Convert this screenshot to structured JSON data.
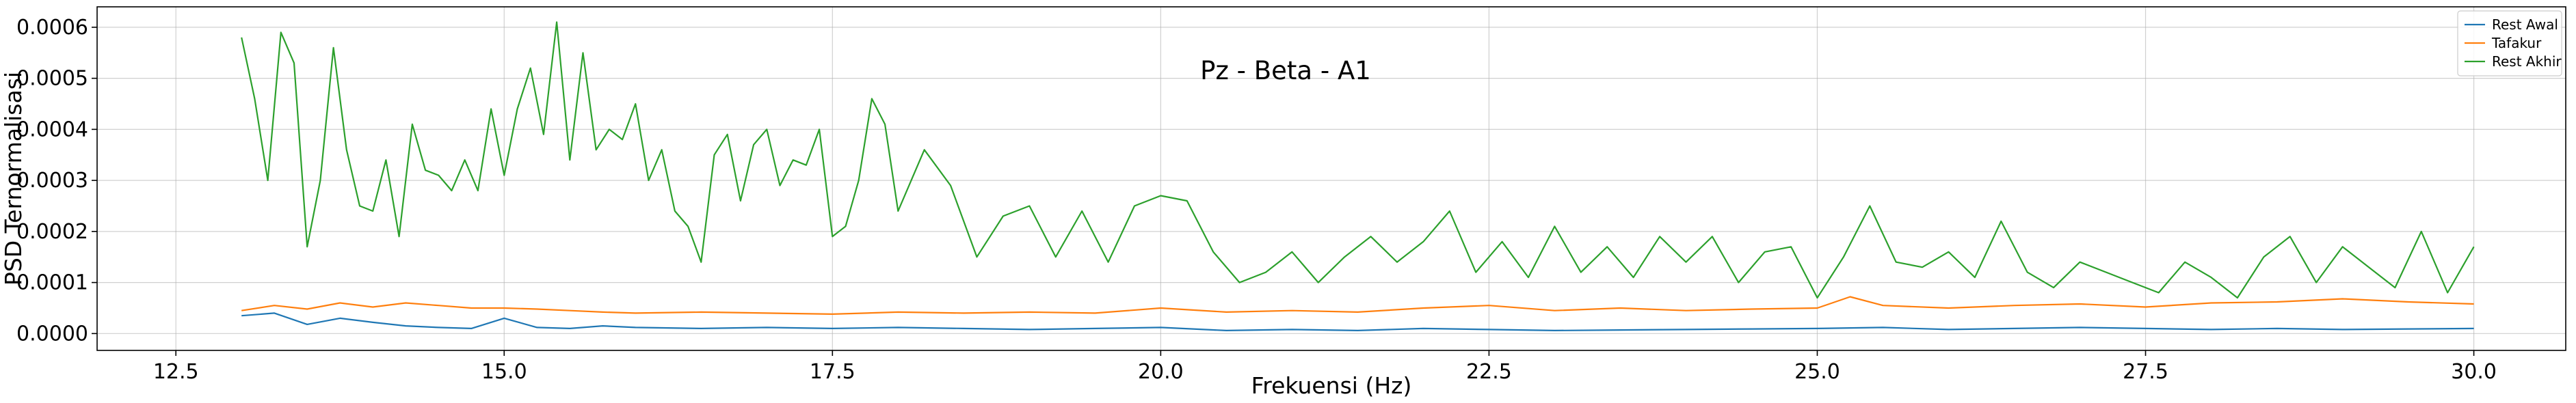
{
  "chart_data": {
    "type": "line",
    "title": "Pz - Beta - A1",
    "xlabel": "Frekuensi (Hz)",
    "ylabel": "PSD Ternormalisasi",
    "xlim": [
      11.9,
      30.7
    ],
    "ylim": [
      -3.3e-05,
      0.00064
    ],
    "x_ticks": [
      12.5,
      15.0,
      17.5,
      20.0,
      22.5,
      25.0,
      27.5,
      30.0
    ],
    "x_tick_labels": [
      "12.5",
      "15.0",
      "17.5",
      "20.0",
      "22.5",
      "25.0",
      "27.5",
      "30.0"
    ],
    "y_ticks": [
      0.0,
      0.0001,
      0.0002,
      0.0003,
      0.0004,
      0.0005,
      0.0006
    ],
    "y_tick_labels": [
      "0.0000",
      "0.0001",
      "0.0002",
      "0.0003",
      "0.0004",
      "0.0005",
      "0.0006"
    ],
    "grid": true,
    "legend_position": "top-right",
    "series": [
      {
        "name": "Rest Awal",
        "color": "#1f77b4",
        "x": [
          13.0,
          13.25,
          13.5,
          13.75,
          14.0,
          14.25,
          14.5,
          14.75,
          15.0,
          15.25,
          15.5,
          15.75,
          16.0,
          16.5,
          17.0,
          17.5,
          18.0,
          18.5,
          19.0,
          19.5,
          20.0,
          20.5,
          21.0,
          21.5,
          22.0,
          22.5,
          23.0,
          23.5,
          24.0,
          24.5,
          25.0,
          25.5,
          26.0,
          26.5,
          27.0,
          27.5,
          28.0,
          28.5,
          29.0,
          29.5,
          30.0
        ],
        "y": [
          3.5e-05,
          4e-05,
          1.8e-05,
          3e-05,
          2.2e-05,
          1.5e-05,
          1.2e-05,
          1e-05,
          3e-05,
          1.2e-05,
          1e-05,
          1.5e-05,
          1.2e-05,
          1e-05,
          1.2e-05,
          1e-05,
          1.2e-05,
          1e-05,
          8e-06,
          1e-05,
          1.2e-05,
          6e-06,
          8e-06,
          6e-06,
          1e-05,
          8e-06,
          6e-06,
          7e-06,
          8e-06,
          9e-06,
          1e-05,
          1.2e-05,
          8e-06,
          1e-05,
          1.2e-05,
          1e-05,
          8e-06,
          1e-05,
          8e-06,
          9e-06,
          1e-05
        ]
      },
      {
        "name": "Tafakur",
        "color": "#ff7f0e",
        "x": [
          13.0,
          13.25,
          13.5,
          13.75,
          14.0,
          14.25,
          14.5,
          14.75,
          15.0,
          15.25,
          15.5,
          15.75,
          16.0,
          16.5,
          17.0,
          17.5,
          18.0,
          18.5,
          19.0,
          19.5,
          20.0,
          20.5,
          21.0,
          21.5,
          22.0,
          22.5,
          23.0,
          23.5,
          24.0,
          24.5,
          25.0,
          25.25,
          25.5,
          26.0,
          26.5,
          27.0,
          27.5,
          28.0,
          28.5,
          29.0,
          29.5,
          30.0
        ],
        "y": [
          4.5e-05,
          5.5e-05,
          4.8e-05,
          6e-05,
          5.2e-05,
          6e-05,
          5.5e-05,
          5e-05,
          5e-05,
          4.8e-05,
          4.5e-05,
          4.2e-05,
          4e-05,
          4.2e-05,
          4e-05,
          3.8e-05,
          4.2e-05,
          4e-05,
          4.2e-05,
          4e-05,
          5e-05,
          4.2e-05,
          4.5e-05,
          4.2e-05,
          5e-05,
          5.5e-05,
          4.5e-05,
          5e-05,
          4.5e-05,
          4.8e-05,
          5e-05,
          7.2e-05,
          5.5e-05,
          5e-05,
          5.5e-05,
          5.8e-05,
          5.2e-05,
          6e-05,
          6.2e-05,
          6.8e-05,
          6.2e-05,
          5.8e-05
        ]
      },
      {
        "name": "Rest Akhir",
        "color": "#2ca02c",
        "x": [
          13.0,
          13.1,
          13.2,
          13.3,
          13.4,
          13.5,
          13.6,
          13.7,
          13.8,
          13.9,
          14.0,
          14.1,
          14.2,
          14.3,
          14.4,
          14.5,
          14.6,
          14.7,
          14.8,
          14.9,
          15.0,
          15.1,
          15.2,
          15.3,
          15.4,
          15.5,
          15.6,
          15.7,
          15.8,
          15.9,
          16.0,
          16.1,
          16.2,
          16.3,
          16.4,
          16.5,
          16.6,
          16.7,
          16.8,
          16.9,
          17.0,
          17.1,
          17.2,
          17.3,
          17.4,
          17.5,
          17.6,
          17.7,
          17.8,
          17.9,
          18.0,
          18.2,
          18.4,
          18.6,
          18.8,
          19.0,
          19.2,
          19.4,
          19.6,
          19.8,
          20.0,
          20.2,
          20.4,
          20.6,
          20.8,
          21.0,
          21.2,
          21.4,
          21.6,
          21.8,
          22.0,
          22.2,
          22.4,
          22.6,
          22.8,
          23.0,
          23.2,
          23.4,
          23.6,
          23.8,
          24.0,
          24.2,
          24.4,
          24.6,
          24.8,
          25.0,
          25.2,
          25.4,
          25.6,
          25.8,
          26.0,
          26.2,
          26.4,
          26.6,
          26.8,
          27.0,
          27.2,
          27.4,
          27.6,
          27.8,
          28.0,
          28.2,
          28.4,
          28.6,
          28.8,
          29.0,
          29.2,
          29.4,
          29.6,
          29.8,
          30.0
        ],
        "y": [
          0.00058,
          0.00046,
          0.0003,
          0.00059,
          0.00053,
          0.00017,
          0.0003,
          0.00056,
          0.00036,
          0.00025,
          0.00024,
          0.00034,
          0.00019,
          0.00041,
          0.00032,
          0.00031,
          0.00028,
          0.00034,
          0.00028,
          0.00044,
          0.00031,
          0.00044,
          0.00052,
          0.00039,
          0.00061,
          0.00034,
          0.00055,
          0.00036,
          0.0004,
          0.00038,
          0.00045,
          0.0003,
          0.00036,
          0.00024,
          0.00021,
          0.00014,
          0.00035,
          0.00039,
          0.00026,
          0.00037,
          0.0004,
          0.00029,
          0.00034,
          0.00033,
          0.0004,
          0.00019,
          0.00021,
          0.0003,
          0.00046,
          0.00041,
          0.00024,
          0.00036,
          0.00029,
          0.00015,
          0.00023,
          0.00025,
          0.00015,
          0.00024,
          0.00014,
          0.00025,
          0.00027,
          0.00026,
          0.00016,
          0.0001,
          0.00012,
          0.00016,
          0.0001,
          0.00015,
          0.00019,
          0.00014,
          0.00018,
          0.00024,
          0.00012,
          0.00018,
          0.00011,
          0.00021,
          0.00012,
          0.00017,
          0.00011,
          0.00019,
          0.00014,
          0.00019,
          0.0001,
          0.00016,
          0.00017,
          7e-05,
          0.00015,
          0.00025,
          0.00014,
          0.00013,
          0.00016,
          0.00011,
          0.00022,
          0.00012,
          9e-05,
          0.00014,
          0.00012,
          0.0001,
          8e-05,
          0.00014,
          0.00011,
          7e-05,
          0.00015,
          0.00019,
          0.0001,
          0.00017,
          0.00013,
          9e-05,
          0.0002,
          8e-05,
          0.00017
        ]
      }
    ]
  }
}
